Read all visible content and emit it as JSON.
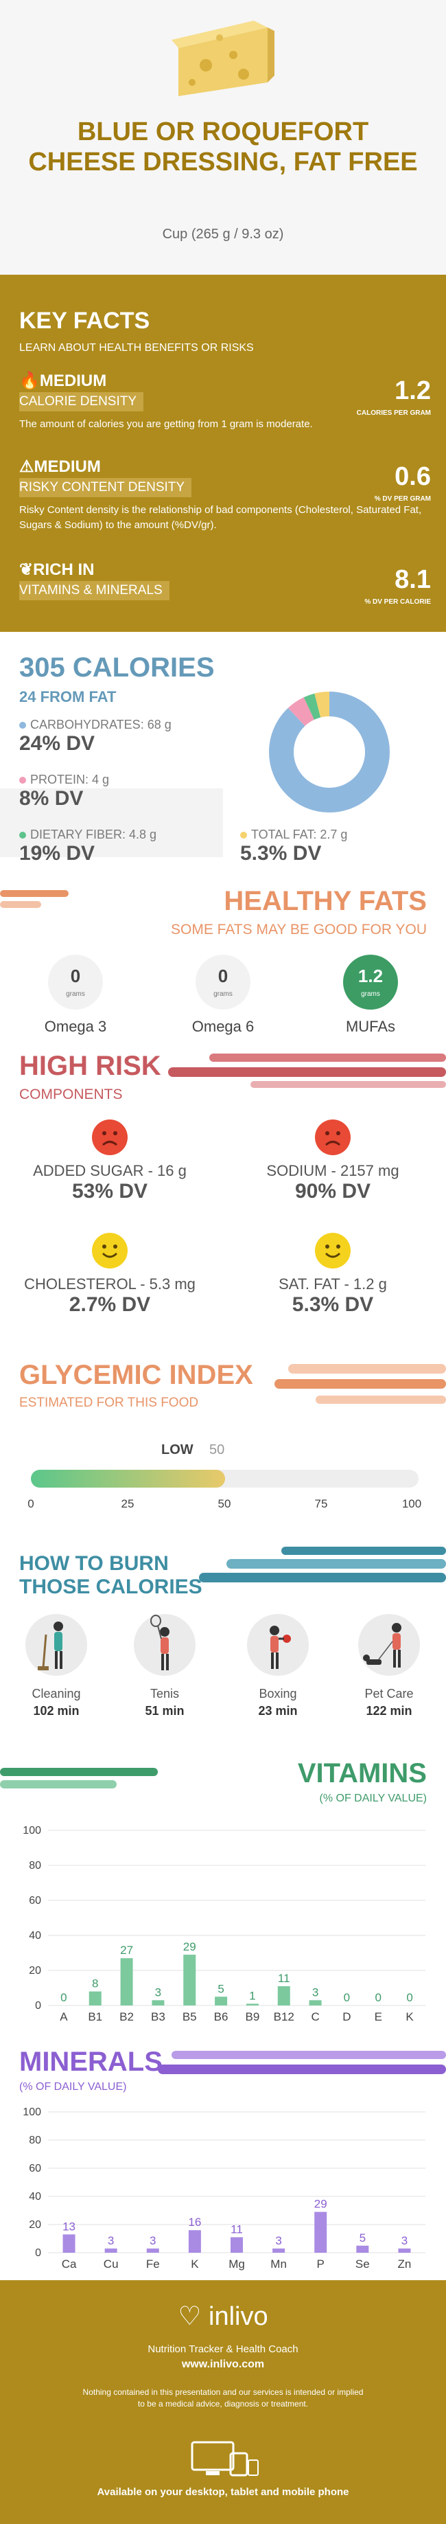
{
  "header": {
    "title": "BLUE OR ROQUEFORT CHEESE DRESSING, FAT FREE",
    "serving": "Cup (265 g / 9.3 oz)"
  },
  "key_facts": {
    "title": "KEY FACTS",
    "subtitle": "LEARN ABOUT HEALTH BENEFITS OR RISKS",
    "items": [
      {
        "level": "MEDIUM",
        "name": "CALORIE DENSITY",
        "value": "1.2",
        "unit": "CALORIES PER GRAM",
        "desc": "The amount of calories you are getting from 1 gram is moderate.",
        "icon": "flame-icon"
      },
      {
        "level": "MEDIUM",
        "name": "RISKY CONTENT DENSITY",
        "value": "0.6",
        "unit": "% DV PER GRAM",
        "desc": "Risky Content density is the relationship of bad components (Cholesterol, Saturated Fat, Sugars & Sodium) to the amount (%DV/gr).",
        "icon": "warning-icon"
      },
      {
        "level": "RICH  IN",
        "name": "VITAMINS & MINERALS",
        "value": "8.1",
        "unit": "% DV PER CALORIE",
        "desc": "",
        "icon": "leaf-icon"
      }
    ]
  },
  "calories": {
    "title": "305 CALORIES",
    "subtitle": "24 FROM FAT",
    "carbs": {
      "label": "CARBOHYDRATES: 68 g",
      "dv": "24% DV",
      "color": "#8fb8de"
    },
    "protein": {
      "label": "PROTEIN: 4 g",
      "dv": "8% DV",
      "color": "#f29cb7"
    },
    "fiber": {
      "label": "DIETARY FIBER: 4.8 g",
      "dv": "19% DV",
      "color": "#5ec28b"
    },
    "fat": {
      "label": "TOTAL FAT: 2.7 g",
      "dv": "5.3% DV",
      "color": "#f5d26e"
    },
    "donut": [
      {
        "name": "carbs",
        "value": 88,
        "color": "#8fb8de"
      },
      {
        "name": "protein",
        "value": 5,
        "color": "#f29cb7"
      },
      {
        "name": "fiber",
        "value": 3,
        "color": "#5ec28b"
      },
      {
        "name": "fat",
        "value": 4,
        "color": "#f5d26e"
      }
    ]
  },
  "fats": {
    "title": "HEALTHY FATS",
    "subtitle": "SOME FATS MAY BE GOOD FOR YOU",
    "unit": "grams",
    "items": [
      {
        "value": "0",
        "name": "Omega 3"
      },
      {
        "value": "0",
        "name": "Omega 6"
      },
      {
        "value": "1.2",
        "name": "MUFAs"
      }
    ]
  },
  "risk": {
    "title": "HIGH RISK",
    "subtitle": "COMPONENTS",
    "items": [
      {
        "label": "ADDED SUGAR - 16 g",
        "dv": "53% DV",
        "mood": "sad"
      },
      {
        "label": "SODIUM - 2157 mg",
        "dv": "90% DV",
        "mood": "sad"
      },
      {
        "label": "CHOLESTEROL - 5.3 mg",
        "dv": "2.7% DV",
        "mood": "happy"
      },
      {
        "label": "SAT. FAT - 1.2 g",
        "dv": "5.3% DV",
        "mood": "happy"
      }
    ]
  },
  "glycemic": {
    "title": "GLYCEMIC INDEX",
    "subtitle": "ESTIMATED FOR THIS FOOD",
    "level": "LOW",
    "value": "50",
    "fill_percent": 50,
    "ticks": [
      "0",
      "25",
      "50",
      "75",
      "100"
    ]
  },
  "burn": {
    "title_line1": "HOW TO BURN",
    "title_line2": "THOSE CALORIES",
    "activities": [
      {
        "name": "Cleaning",
        "minutes": "102 min"
      },
      {
        "name": "Tenis",
        "minutes": "51 min"
      },
      {
        "name": "Boxing",
        "minutes": "23 min"
      },
      {
        "name": "Pet Care",
        "minutes": "122 min"
      }
    ]
  },
  "vitamins": {
    "title": "VITAMINS",
    "subtitle": "(% OF DAILY VALUE)"
  },
  "minerals": {
    "title": "MINERALS",
    "subtitle": "(% OF DAILY VALUE)"
  },
  "chart_data": [
    {
      "type": "bar",
      "categories": [
        "A",
        "B1",
        "B2",
        "B3",
        "B5",
        "B6",
        "B9",
        "B12",
        "C",
        "D",
        "E",
        "K"
      ],
      "values": [
        0,
        8,
        27,
        3,
        29,
        5,
        1,
        11,
        3,
        0,
        0,
        0
      ],
      "ylim": [
        0,
        100
      ],
      "yticks": [
        0,
        20,
        40,
        60,
        80,
        100
      ],
      "color": "#7cc99e",
      "label_color": "#3e9b6a"
    },
    {
      "type": "bar",
      "categories": [
        "Ca",
        "Cu",
        "Fe",
        "K",
        "Mg",
        "Mn",
        "P",
        "Se",
        "Zn"
      ],
      "values": [
        13,
        3,
        3,
        16,
        11,
        3,
        29,
        5,
        3
      ],
      "ylim": [
        0,
        100
      ],
      "yticks": [
        0,
        20,
        40,
        60,
        80,
        100
      ],
      "color": "#a98be3",
      "label_color": "#8b5fd1"
    }
  ],
  "footer": {
    "brand": "inlivo",
    "tagline": "Nutrition Tracker & Health Coach",
    "url": "www.inlivo.com",
    "disclaimer": "Nothing contained in this presentation and our services is intended or implied to be a medical advice, diagnosis or treatment.",
    "available": "Available on your desktop, tablet and mobile phone"
  }
}
